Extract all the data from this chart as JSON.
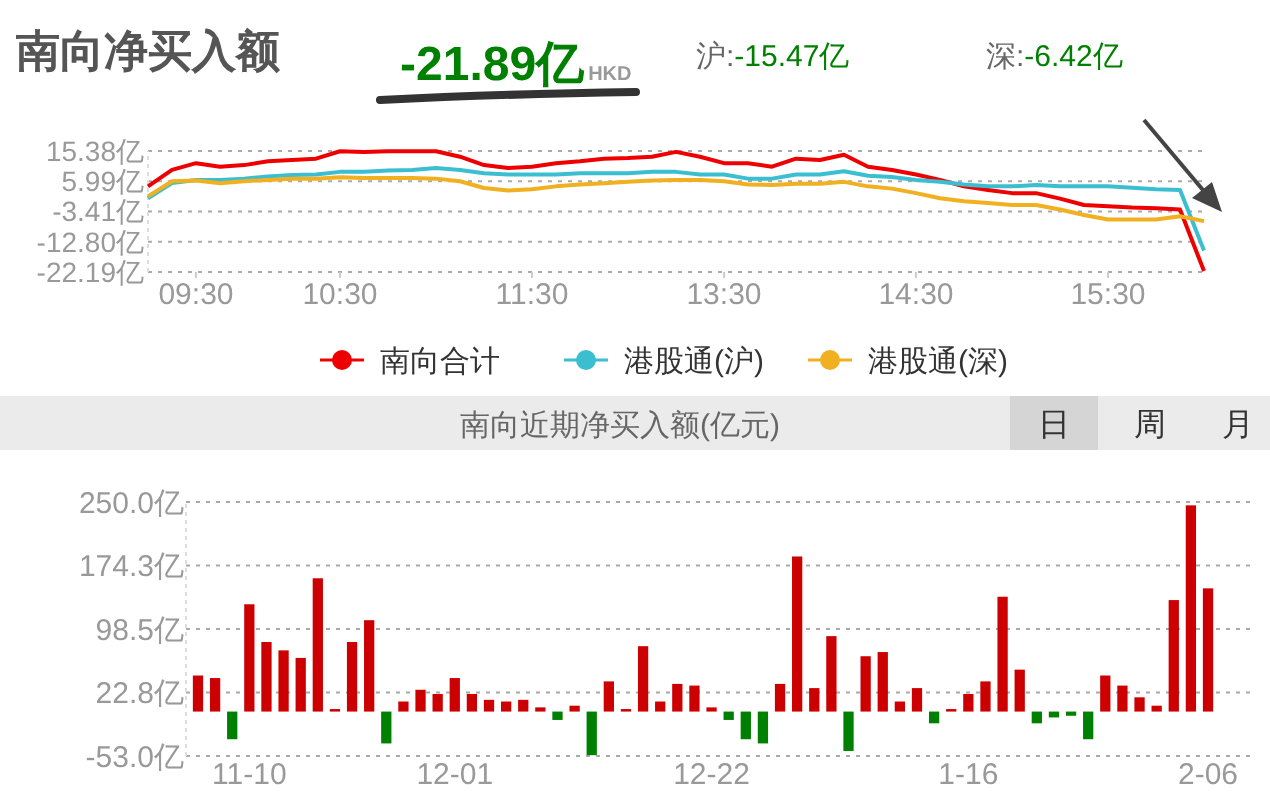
{
  "chart_data": [
    {
      "type": "line",
      "title": "南向净买入额",
      "annotations": [
        "-21.89亿",
        "HKD",
        "沪:-15.47亿",
        "深:-6.42亿"
      ],
      "categories": [
        null,
        null,
        "09:30",
        null,
        null,
        null,
        null,
        null,
        "10:30",
        null,
        null,
        null,
        null,
        null,
        null,
        null,
        "11:30",
        null,
        null,
        null,
        null,
        null,
        null,
        null,
        "13:30",
        null,
        null,
        null,
        null,
        null,
        null,
        null,
        "14:30",
        null,
        null,
        null,
        null,
        null,
        null,
        null,
        "15:30",
        null,
        null,
        null,
        null
      ],
      "series": [
        {
          "name": "南向合计",
          "color": "#ee0000",
          "values": [
            4.4,
            9.5,
            11.6,
            10.5,
            11,
            12.2,
            12.6,
            13,
            15.3,
            15.1,
            15.3,
            15.3,
            15.3,
            13.6,
            11,
            10.1,
            10.5,
            11.6,
            12.2,
            13,
            13.2,
            13.6,
            15.1,
            13.6,
            11.6,
            11.6,
            10.5,
            13,
            12.6,
            14.2,
            10.5,
            9.5,
            8.1,
            6.4,
            4.4,
            3.3,
            2.3,
            2.3,
            0.6,
            -1.4,
            -1.8,
            -2.2,
            -2.4,
            -2.8,
            -21.9
          ]
        },
        {
          "name": "港股通(沪)",
          "color": "#3bbfd0",
          "values": [
            0.7,
            5.4,
            6.4,
            6.4,
            6.8,
            7.5,
            7.9,
            8.1,
            8.9,
            8.9,
            9.3,
            9.5,
            10.1,
            9.5,
            8.5,
            8.1,
            8.1,
            8.1,
            8.5,
            8.5,
            8.5,
            8.9,
            8.9,
            8.1,
            8.1,
            6.8,
            6.8,
            8.1,
            8.1,
            9.1,
            7.7,
            7.3,
            6.4,
            5.8,
            5,
            4.4,
            4.4,
            4.8,
            4.4,
            4.4,
            4.4,
            4,
            3.5,
            3.3,
            -15.5
          ]
        },
        {
          "name": "港股通(深)",
          "color": "#f0b020",
          "values": [
            1.3,
            6,
            6.2,
            5.4,
            6,
            6.4,
            6.8,
            6.8,
            7.2,
            7,
            7,
            7,
            6.8,
            6,
            3.9,
            3.1,
            3.5,
            4.4,
            5,
            5.4,
            5.8,
            6.2,
            6.4,
            6.4,
            6,
            5,
            4.8,
            5.2,
            5.2,
            5.8,
            4.4,
            3.7,
            2.3,
            0.7,
            -0.2,
            -0.8,
            -1.4,
            -1.4,
            -2.8,
            -4.5,
            -5.9,
            -5.9,
            -5.9,
            -4.9,
            -6.4
          ]
        }
      ],
      "ylim": [
        -22.19,
        15.38
      ],
      "yticks": [
        {
          "value": 15.38,
          "label": "15.38亿"
        },
        {
          "value": 5.99,
          "label": "5.99亿"
        },
        {
          "value": -3.41,
          "label": "-3.41亿"
        },
        {
          "value": -12.8,
          "label": "-12.80亿"
        },
        {
          "value": -22.19,
          "label": "-22.19亿"
        }
      ],
      "grid": "y",
      "legend": "bottom"
    },
    {
      "type": "bar",
      "title": "南向近期净买入额(亿元)",
      "annotations": [
        "日",
        "周",
        "月"
      ],
      "categories": [
        null,
        null,
        null,
        "11-10",
        null,
        null,
        null,
        null,
        null,
        null,
        null,
        null,
        null,
        null,
        null,
        "12-01",
        null,
        null,
        null,
        null,
        null,
        null,
        null,
        null,
        null,
        null,
        null,
        null,
        null,
        null,
        "12-22",
        null,
        null,
        null,
        null,
        null,
        null,
        null,
        null,
        null,
        null,
        null,
        null,
        null,
        null,
        "1-16",
        null,
        null,
        null,
        null,
        null,
        null,
        null,
        null,
        null,
        null,
        null,
        null,
        null,
        "2-06"
      ],
      "values": [
        43,
        40,
        -33,
        128,
        83,
        73,
        64,
        159,
        3,
        83,
        109,
        -38,
        12,
        26,
        21,
        40,
        21,
        14,
        12,
        14,
        5,
        -10,
        7,
        -52,
        36,
        3,
        78,
        12,
        33,
        31,
        5,
        -10,
        -33,
        -38,
        33,
        185,
        28,
        90,
        -47,
        66,
        71,
        12,
        28,
        -14,
        3,
        21,
        36,
        137,
        50,
        -14,
        -7,
        -5,
        -33,
        43,
        31,
        17,
        7,
        133,
        246,
        147
      ],
      "colors": [
        "#cc0000",
        "#cc0000",
        "#008000",
        "#cc0000",
        "#cc0000",
        "#cc0000",
        "#cc0000",
        "#cc0000",
        "#cc0000",
        "#cc0000",
        "#cc0000",
        "#008000",
        "#cc0000",
        "#cc0000",
        "#cc0000",
        "#cc0000",
        "#cc0000",
        "#cc0000",
        "#cc0000",
        "#cc0000",
        "#cc0000",
        "#008000",
        "#cc0000",
        "#008000",
        "#cc0000",
        "#cc0000",
        "#cc0000",
        "#cc0000",
        "#cc0000",
        "#cc0000",
        "#cc0000",
        "#008000",
        "#008000",
        "#008000",
        "#cc0000",
        "#cc0000",
        "#cc0000",
        "#cc0000",
        "#008000",
        "#cc0000",
        "#cc0000",
        "#cc0000",
        "#cc0000",
        "#008000",
        "#cc0000",
        "#cc0000",
        "#cc0000",
        "#cc0000",
        "#cc0000",
        "#008000",
        "#008000",
        "#008000",
        "#008000",
        "#cc0000",
        "#cc0000",
        "#cc0000",
        "#cc0000",
        "#cc0000",
        "#cc0000",
        "#cc0000"
      ],
      "ylim": [
        -53,
        250
      ],
      "yticks": [
        {
          "value": 250,
          "label": "250.0亿"
        },
        {
          "value": 174.3,
          "label": "174.3亿"
        },
        {
          "value": 98.5,
          "label": "98.5亿"
        },
        {
          "value": 22.8,
          "label": "22.8亿"
        },
        {
          "value": -53,
          "label": "-53.0亿"
        }
      ],
      "grid": "y"
    }
  ]
}
